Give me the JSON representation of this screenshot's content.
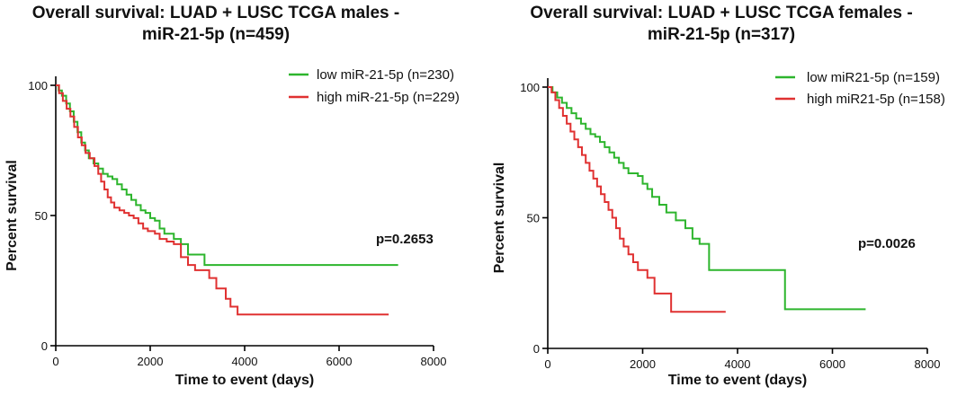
{
  "chart_data": [
    {
      "type": "line",
      "title_line1": "Overall survival: LUAD + LUSC TCGA males -",
      "title_line2": "miR-21-5p (n=459)",
      "xlabel": "Time to event (days)",
      "ylabel": "Percent survival",
      "xlim": [
        0,
        8000
      ],
      "ylim": [
        0,
        100
      ],
      "xticks": [
        0,
        2000,
        4000,
        6000,
        8000
      ],
      "yticks": [
        0,
        50,
        100
      ],
      "annotation": "p=0.2653",
      "legend_position": "top-right",
      "series": [
        {
          "name": "low miR-21-5p (n=230)",
          "color": "#2db52d",
          "steps": [
            [
              0,
              100
            ],
            [
              60,
              98
            ],
            [
              130,
              96
            ],
            [
              220,
              93
            ],
            [
              300,
              90
            ],
            [
              380,
              86
            ],
            [
              460,
              82
            ],
            [
              540,
              78
            ],
            [
              620,
              75
            ],
            [
              700,
              72
            ],
            [
              800,
              70
            ],
            [
              900,
              68
            ],
            [
              1000,
              66
            ],
            [
              1100,
              65
            ],
            [
              1200,
              64
            ],
            [
              1300,
              62
            ],
            [
              1400,
              60
            ],
            [
              1500,
              58
            ],
            [
              1600,
              56
            ],
            [
              1700,
              54
            ],
            [
              1800,
              52
            ],
            [
              1900,
              51
            ],
            [
              2000,
              49
            ],
            [
              2100,
              48
            ],
            [
              2200,
              45
            ],
            [
              2300,
              43
            ],
            [
              2500,
              41
            ],
            [
              2650,
              39
            ],
            [
              2800,
              35
            ],
            [
              3150,
              31
            ],
            [
              7250,
              31
            ]
          ]
        },
        {
          "name": "high miR-21-5p (n=229)",
          "color": "#e03131",
          "steps": [
            [
              0,
              100
            ],
            [
              70,
              97
            ],
            [
              150,
              94
            ],
            [
              230,
              91
            ],
            [
              310,
              88
            ],
            [
              390,
              84
            ],
            [
              470,
              80
            ],
            [
              550,
              77
            ],
            [
              630,
              74
            ],
            [
              720,
              72
            ],
            [
              820,
              69
            ],
            [
              900,
              66
            ],
            [
              960,
              63
            ],
            [
              1030,
              60
            ],
            [
              1100,
              57
            ],
            [
              1170,
              55
            ],
            [
              1240,
              53
            ],
            [
              1350,
              52
            ],
            [
              1450,
              51
            ],
            [
              1550,
              50
            ],
            [
              1650,
              49
            ],
            [
              1750,
              47
            ],
            [
              1850,
              45
            ],
            [
              1950,
              44
            ],
            [
              2100,
              43
            ],
            [
              2200,
              41
            ],
            [
              2350,
              40
            ],
            [
              2500,
              39
            ],
            [
              2650,
              34
            ],
            [
              2800,
              31
            ],
            [
              2950,
              29
            ],
            [
              3250,
              26
            ],
            [
              3400,
              22
            ],
            [
              3600,
              18
            ],
            [
              3700,
              15
            ],
            [
              3850,
              12
            ],
            [
              7050,
              12
            ]
          ]
        }
      ]
    },
    {
      "type": "line",
      "title_line1": "Overall survival: LUAD + LUSC TCGA females -",
      "title_line2": "miR-21-5p (n=317)",
      "xlabel": "Time to event (days)",
      "ylabel": "Percent survival",
      "xlim": [
        0,
        8000
      ],
      "ylim": [
        0,
        100
      ],
      "xticks": [
        0,
        2000,
        4000,
        6000,
        8000
      ],
      "yticks": [
        0,
        50,
        100
      ],
      "annotation": "p=0.0026",
      "legend_position": "top-right",
      "series": [
        {
          "name": "low miR21-5p (n=159)",
          "color": "#2db52d",
          "steps": [
            [
              0,
              100
            ],
            [
              100,
              98
            ],
            [
              200,
              96
            ],
            [
              300,
              94
            ],
            [
              400,
              92
            ],
            [
              500,
              90
            ],
            [
              600,
              88
            ],
            [
              700,
              86
            ],
            [
              800,
              84
            ],
            [
              900,
              82
            ],
            [
              1000,
              81
            ],
            [
              1100,
              79
            ],
            [
              1200,
              77
            ],
            [
              1300,
              75
            ],
            [
              1400,
              73
            ],
            [
              1500,
              71
            ],
            [
              1600,
              69
            ],
            [
              1700,
              67
            ],
            [
              1900,
              66
            ],
            [
              2000,
              63
            ],
            [
              2100,
              61
            ],
            [
              2200,
              58
            ],
            [
              2350,
              55
            ],
            [
              2500,
              52
            ],
            [
              2700,
              49
            ],
            [
              2900,
              46
            ],
            [
              3050,
              42
            ],
            [
              3200,
              40
            ],
            [
              3400,
              30
            ],
            [
              5000,
              15
            ],
            [
              6700,
              15
            ]
          ]
        },
        {
          "name": "high miR21-5p (n=158)",
          "color": "#e03131",
          "steps": [
            [
              0,
              100
            ],
            [
              80,
              98
            ],
            [
              160,
              95
            ],
            [
              240,
              92
            ],
            [
              320,
              89
            ],
            [
              400,
              86
            ],
            [
              480,
              83
            ],
            [
              560,
              80
            ],
            [
              640,
              77
            ],
            [
              720,
              74
            ],
            [
              800,
              71
            ],
            [
              880,
              68
            ],
            [
              960,
              65
            ],
            [
              1040,
              62
            ],
            [
              1120,
              59
            ],
            [
              1200,
              56
            ],
            [
              1280,
              53
            ],
            [
              1360,
              50
            ],
            [
              1440,
              46
            ],
            [
              1520,
              42
            ],
            [
              1600,
              39
            ],
            [
              1700,
              36
            ],
            [
              1800,
              33
            ],
            [
              1900,
              30
            ],
            [
              2100,
              27
            ],
            [
              2250,
              21
            ],
            [
              2600,
              14
            ],
            [
              3750,
              14
            ]
          ]
        }
      ]
    }
  ]
}
